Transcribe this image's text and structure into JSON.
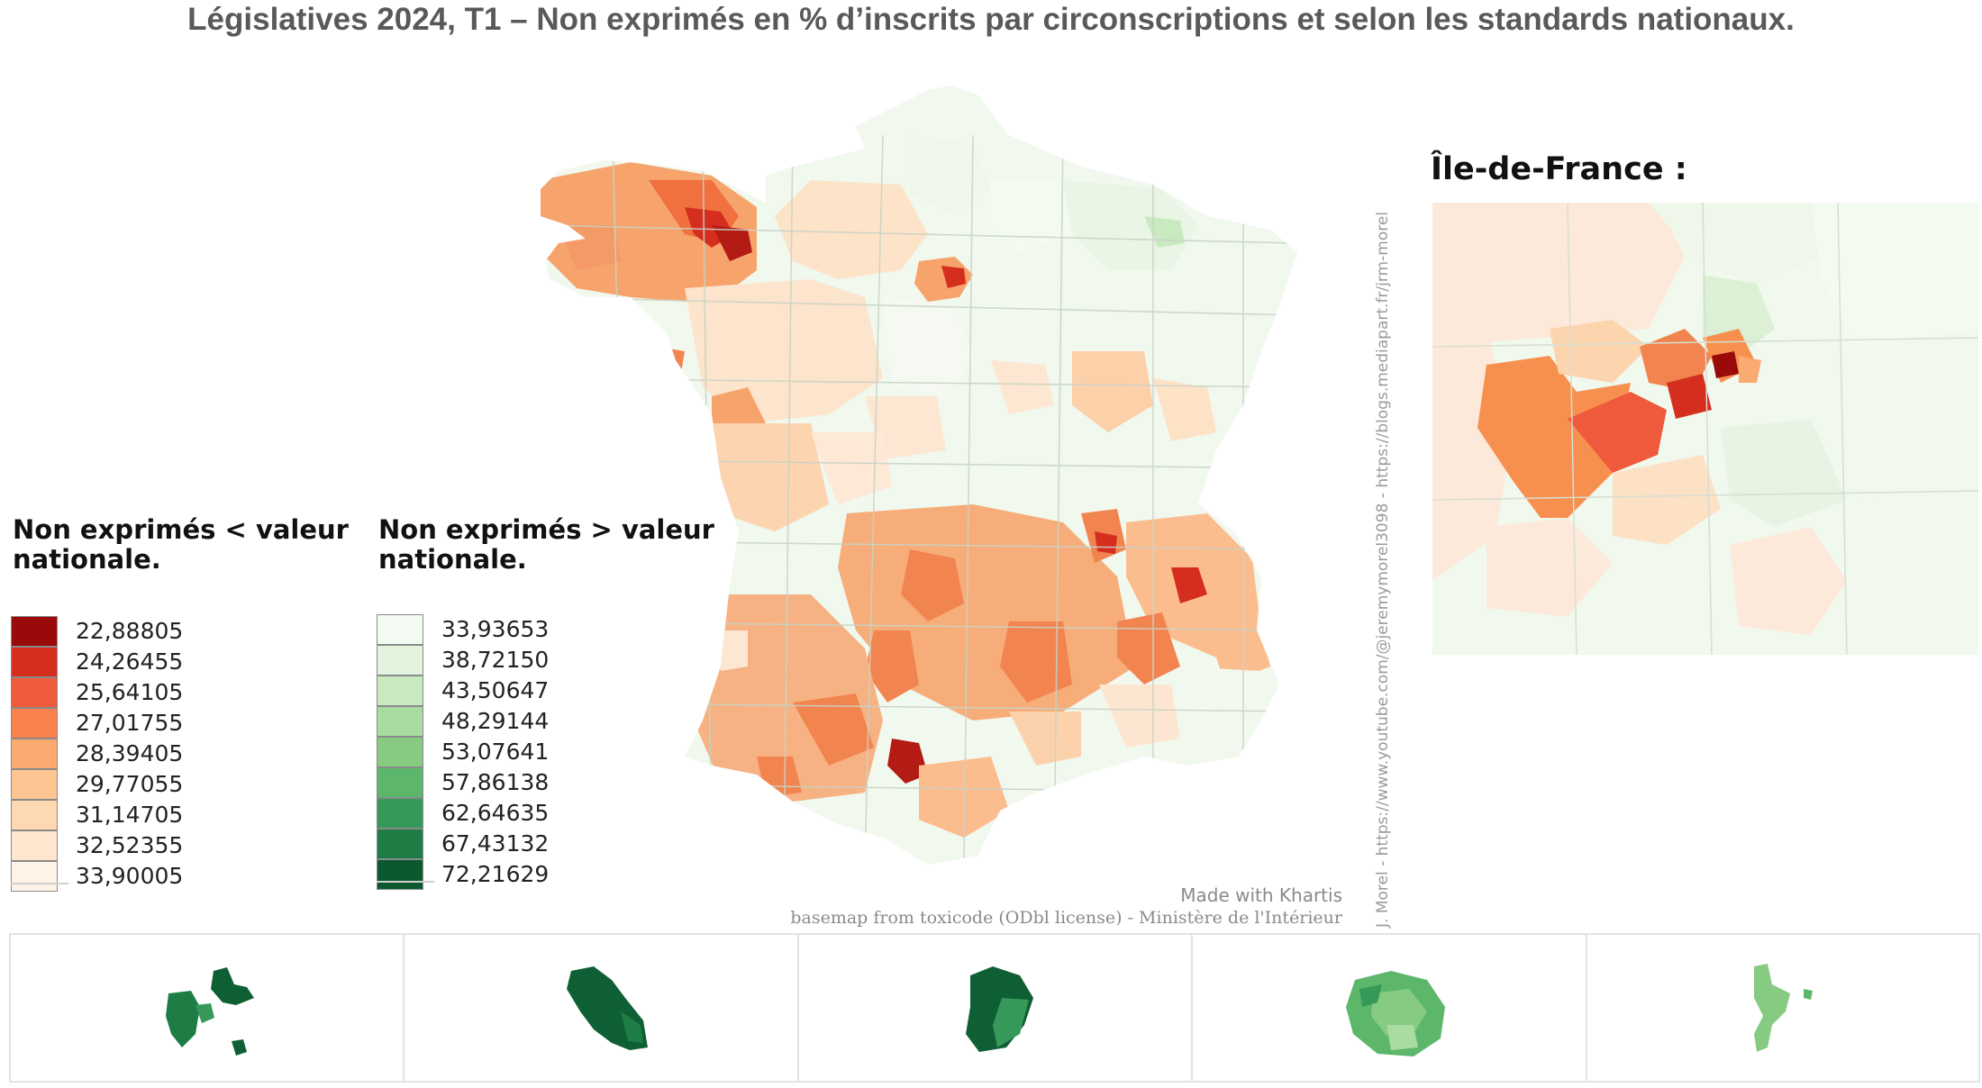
{
  "title": "Législatives 2024, T1 – Non exprimés en % d’inscrits par circonscriptions et selon les standards nationaux.",
  "legend_below": {
    "heading_line1": "Non exprimés < valeur",
    "heading_line2": "nationale.",
    "classes": [
      {
        "label": "22,88805",
        "color": "#9b0a0a"
      },
      {
        "label": "24,26455",
        "color": "#d52e1f"
      },
      {
        "label": "25,64105",
        "color": "#ef5a3c"
      },
      {
        "label": "27,01755",
        "color": "#f7824d"
      },
      {
        "label": "28,39405",
        "color": "#fbaa72"
      },
      {
        "label": "29,77055",
        "color": "#fdc592"
      },
      {
        "label": "31,14705",
        "color": "#fed8b1"
      },
      {
        "label": "32,52355",
        "color": "#ffe7cf"
      },
      {
        "label": "33,90005",
        "color": "#fff3e8"
      }
    ]
  },
  "legend_above": {
    "heading_line1": "Non exprimés > valeur",
    "heading_line2": "nationale.",
    "classes": [
      {
        "label": "33,93653",
        "color": "#f3faf1"
      },
      {
        "label": "38,72150",
        "color": "#e2f4dd"
      },
      {
        "label": "43,50647",
        "color": "#c9eac1"
      },
      {
        "label": "48,29144",
        "color": "#a9dca0"
      },
      {
        "label": "53,07641",
        "color": "#86cb81"
      },
      {
        "label": "57,86138",
        "color": "#5db76a"
      },
      {
        "label": "62,64635",
        "color": "#36995a"
      },
      {
        "label": "67,43132",
        "color": "#1d7d45"
      },
      {
        "label": "72,21629",
        "color": "#0b5a2f"
      }
    ]
  },
  "inset_title": "Île-de-France :",
  "credits": {
    "made_with": "Made with Khartis",
    "basemap": "basemap from toxicode (ODbl license) - Ministère de l'Intérieur",
    "vertical": "J. Morel - https://www.youtube.com/@jeremymorel3098 - https://blogs.mediapart.fr/jrm-morel"
  },
  "map_colors": {
    "mainland_base": "#f1f8ee",
    "borders": "#c9d3c6",
    "west_region": "#f7a36c",
    "south_west": "#f6ad7a",
    "massif_central": "#f29a60",
    "pale_orange": "#fcd9b8",
    "deep_red": "#b41b14",
    "dom_dark": "#0e5f33",
    "dom_mid": "#2f8c4d",
    "dom_light": "#86cb81"
  }
}
